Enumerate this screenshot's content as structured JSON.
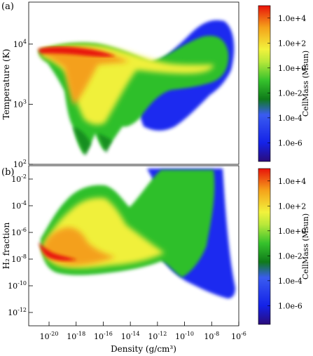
{
  "chart_data": [
    {
      "type": "heatmap",
      "panel_label": "(a)",
      "ylabel": "Temperature (K)",
      "yscale": "log",
      "ylim": [
        100,
        50000
      ],
      "yticks": [
        {
          "value": 100,
          "label": "10",
          "exp": "2"
        },
        {
          "value": 1000,
          "label": "10",
          "exp": "3"
        },
        {
          "value": 10000,
          "label": "10",
          "exp": "4"
        }
      ],
      "colorbar": {
        "label": "CellMass (Msun)",
        "ticks": [
          "1.0e+4",
          "1.0e+2",
          "1.0e+0",
          "1.0e-2",
          "1.0e-4",
          "1.0e-6"
        ],
        "tick_values": [
          4,
          2,
          0,
          -2,
          -4,
          -6
        ],
        "range": [
          -7.5,
          5
        ]
      }
    },
    {
      "type": "heatmap",
      "panel_label": "(b)",
      "ylabel": "H₂ fraction",
      "yscale": "log",
      "ylim": [
        1e-12,
        0.1
      ],
      "xlabel": "Density (g/cm³)",
      "xscale": "log",
      "xlim": [
        3e-22,
        1e-06
      ],
      "xticks": [
        {
          "value": -20,
          "label": "10",
          "exp": "-20"
        },
        {
          "value": -18,
          "label": "10",
          "exp": "-18"
        },
        {
          "value": -16,
          "label": "10",
          "exp": "-16"
        },
        {
          "value": -14,
          "label": "10",
          "exp": "-14"
        },
        {
          "value": -12,
          "label": "10",
          "exp": "-12"
        },
        {
          "value": -10,
          "label": "10",
          "exp": "-10"
        },
        {
          "value": -8,
          "label": "10",
          "exp": "-8"
        },
        {
          "value": -6,
          "label": "10",
          "exp": "-6"
        }
      ],
      "yticks": [
        {
          "value": -12,
          "label": "10",
          "exp": "-12"
        },
        {
          "value": -10,
          "label": "10",
          "exp": "-10"
        },
        {
          "value": -8,
          "label": "10",
          "exp": "-8"
        },
        {
          "value": -6,
          "label": "10",
          "exp": "-6"
        },
        {
          "value": -4,
          "label": "10",
          "exp": "-4"
        },
        {
          "value": -2,
          "label": "10",
          "exp": "-2"
        }
      ],
      "colorbar": {
        "label": "CellMass (Msun)",
        "ticks": [
          "1.0e+4",
          "1.0e+2",
          "1.0e+0",
          "1.0e-2",
          "1.0e-4",
          "1.0e-6"
        ],
        "tick_values": [
          4,
          2,
          0,
          -2,
          -4,
          -6
        ],
        "range": [
          -7.5,
          5
        ]
      }
    }
  ],
  "colors": {
    "red": "#e8120a",
    "orange": "#f5a21a",
    "yellow": "#f2f23c",
    "green": "#35c22c",
    "darkgreen": "#0f7a1a",
    "blue": "#1e2ef0",
    "navy": "#2a0c7a"
  }
}
